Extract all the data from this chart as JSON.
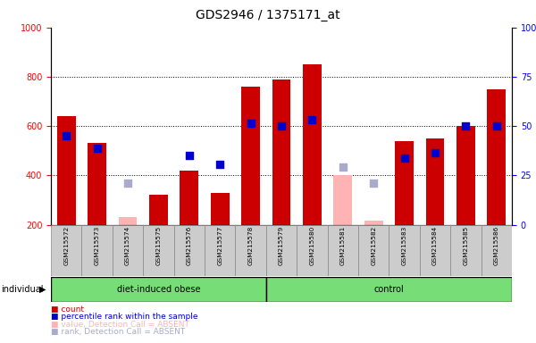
{
  "title": "GDS2946 / 1375171_at",
  "samples": [
    "GSM215572",
    "GSM215573",
    "GSM215574",
    "GSM215575",
    "GSM215576",
    "GSM215577",
    "GSM215578",
    "GSM215579",
    "GSM215580",
    "GSM215581",
    "GSM215582",
    "GSM215583",
    "GSM215584",
    "GSM215585",
    "GSM215586"
  ],
  "count_values": [
    640,
    530,
    null,
    320,
    420,
    330,
    760,
    790,
    850,
    null,
    null,
    540,
    550,
    600,
    750
  ],
  "count_absent": [
    null,
    null,
    230,
    null,
    null,
    null,
    null,
    null,
    null,
    400,
    215,
    null,
    null,
    null,
    null
  ],
  "rank_values": [
    560,
    510,
    null,
    null,
    480,
    445,
    610,
    600,
    625,
    null,
    null,
    470,
    490,
    600,
    600
  ],
  "rank_absent": [
    null,
    null,
    370,
    null,
    null,
    null,
    null,
    null,
    null,
    435,
    370,
    null,
    null,
    null,
    null
  ],
  "ylim_left": [
    200,
    1000
  ],
  "yticks_left": [
    200,
    400,
    600,
    800,
    1000
  ],
  "yticks_right": [
    0,
    25,
    50,
    75,
    100
  ],
  "n_obese": 7,
  "n_control": 8,
  "bar_color_count": "#cc0000",
  "bar_color_count_absent": "#ffb3b3",
  "marker_color_rank": "#0000cc",
  "marker_color_rank_absent": "#aaaacc",
  "group_bg": "#cccccc",
  "group_color": "#77dd77",
  "background_color": "#ffffff",
  "legend": [
    {
      "color": "#cc0000",
      "label": "count"
    },
    {
      "color": "#0000cc",
      "label": "percentile rank within the sample"
    },
    {
      "color": "#ffb3b3",
      "label": "value, Detection Call = ABSENT"
    },
    {
      "color": "#aaaacc",
      "label": "rank, Detection Call = ABSENT"
    }
  ]
}
